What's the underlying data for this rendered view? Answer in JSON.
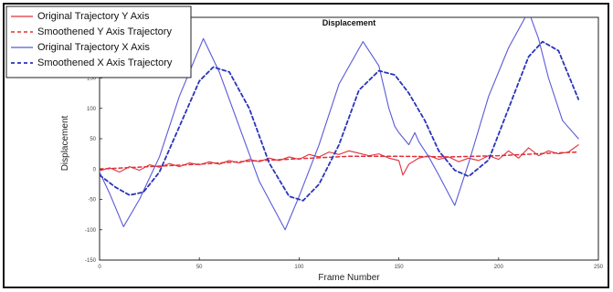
{
  "chart_data": {
    "type": "line",
    "title": "Displacement",
    "xlabel": "Frame Number",
    "ylabel": "Displacement",
    "xlim": [
      0,
      250
    ],
    "ylim": [
      -150,
      250
    ],
    "xticks": [
      0,
      50,
      100,
      150,
      200,
      250
    ],
    "yticks": [
      -150,
      -100,
      -50,
      0,
      50,
      100,
      150,
      200
    ],
    "grid": false,
    "legend_position": "top-left",
    "series": [
      {
        "name": "Original Trajectory Y Axis",
        "color": "#e0303a",
        "style": "solid",
        "x": [
          0,
          5,
          10,
          15,
          20,
          25,
          30,
          35,
          40,
          45,
          50,
          55,
          60,
          65,
          70,
          75,
          80,
          85,
          90,
          95,
          100,
          105,
          110,
          115,
          120,
          125,
          130,
          135,
          140,
          145,
          150,
          152,
          155,
          160,
          165,
          170,
          175,
          180,
          185,
          190,
          195,
          200,
          205,
          210,
          215,
          220,
          225,
          230,
          235,
          240
        ],
        "values": [
          -3,
          2,
          -5,
          4,
          -2,
          7,
          3,
          9,
          4,
          10,
          7,
          12,
          8,
          14,
          10,
          16,
          12,
          18,
          14,
          20,
          16,
          24,
          20,
          28,
          24,
          30,
          26,
          22,
          25,
          18,
          14,
          -10,
          8,
          18,
          22,
          16,
          20,
          12,
          18,
          14,
          22,
          16,
          30,
          18,
          35,
          22,
          30,
          25,
          28,
          40
        ]
      },
      {
        "name": "Smoothened Y Axis Trajectory",
        "color": "#e0303a",
        "style": "dashed",
        "x": [
          0,
          25,
          50,
          75,
          100,
          125,
          150,
          175,
          200,
          225,
          240
        ],
        "values": [
          0,
          4,
          8,
          13,
          17,
          21,
          21,
          20,
          22,
          26,
          28
        ]
      },
      {
        "name": "Original Trajectory X Axis",
        "color": "#5a5ad8",
        "style": "solid",
        "x": [
          0,
          5,
          12,
          20,
          30,
          40,
          52,
          60,
          70,
          80,
          93,
          100,
          110,
          120,
          132,
          140,
          145,
          148,
          150,
          155,
          158,
          160,
          165,
          170,
          178,
          185,
          195,
          205,
          215,
          220,
          225,
          232,
          240
        ],
        "values": [
          -5,
          -40,
          -95,
          -50,
          20,
          120,
          215,
          160,
          70,
          -20,
          -100,
          -45,
          40,
          140,
          210,
          170,
          100,
          70,
          60,
          40,
          60,
          45,
          20,
          -10,
          -60,
          10,
          120,
          200,
          260,
          215,
          150,
          80,
          50
        ]
      },
      {
        "name": "Smoothened X Axis Trajectory",
        "color": "#2a34b8",
        "style": "dashed",
        "x": [
          0,
          8,
          15,
          22,
          30,
          40,
          50,
          57,
          65,
          75,
          85,
          95,
          102,
          110,
          120,
          130,
          140,
          148,
          155,
          163,
          170,
          178,
          185,
          195,
          205,
          215,
          222,
          230,
          240
        ],
        "values": [
          -10,
          -30,
          -43,
          -38,
          -5,
          70,
          145,
          168,
          160,
          100,
          10,
          -45,
          -52,
          -25,
          40,
          130,
          162,
          155,
          125,
          80,
          30,
          -2,
          -12,
          15,
          100,
          185,
          210,
          195,
          115
        ]
      }
    ]
  }
}
